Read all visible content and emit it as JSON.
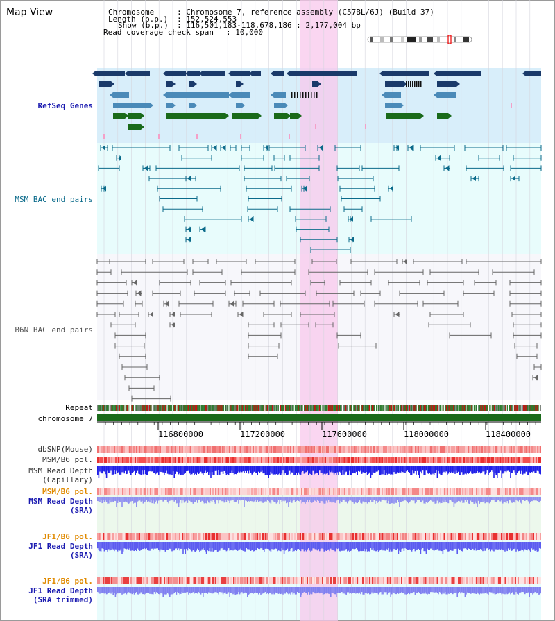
{
  "title": "Map View",
  "info": {
    "chromosome_key": "Chromosome",
    "chromosome_val": ": Chromosome 7, reference assembly (C57BL/6J) (Build 37)",
    "length_key": "Length (b.p.)",
    "length_val": ": 152,524,553",
    "show_key": "Show (b.p.)",
    "show_val": ": 116,501,183-118,678,186 : 2,177,004 bp",
    "coverage_key": "Read coverage check span",
    "coverage_val": ": 10,000"
  },
  "tracks": {
    "refseq": "RefSeq Genes",
    "msm_bac": "MSM BAC end pairs",
    "b6n_bac": "B6N BAC end pairs",
    "repeat": "Repeat",
    "chromosome": "chromosome 7",
    "dbsnp": "dbSNP(Mouse)",
    "msm_b6_pol": "MSM/B6 pol.",
    "msm_depth_cap_1": "MSM Read Depth",
    "msm_depth_cap_2": "(Capillary)",
    "msm_b6_pol2": "MSM/B6 pol.",
    "msm_depth_sra_1": "MSM Read Depth",
    "msm_depth_sra_2": "(SRA)",
    "jf1_b6_pol": "JF1/B6 pol.",
    "jf1_depth_sra_1": "JF1 Read Depth",
    "jf1_depth_sra_2": "(SRA)",
    "jf1_b6_pol2": "JF1/B6 pol.",
    "jf1_depth_trim_1": "JF1 Read Depth",
    "jf1_depth_trim_2": "(SRA trimmed)"
  },
  "axis": {
    "ticks": [
      "116800000",
      "117200000",
      "117600000",
      "118000000",
      "118400000"
    ]
  },
  "colors": {
    "refseq_label": "#1a1ab0",
    "msm_label": "#0a6a8a",
    "b6n_label": "#555555",
    "pol_orange": "#e08a00",
    "depth_blue": "#1a1ab0",
    "highlight": "#f8c8ec"
  }
}
